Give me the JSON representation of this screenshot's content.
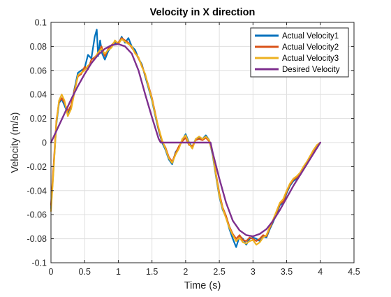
{
  "chart_data": {
    "type": "line",
    "title": "Velocity in X direction",
    "xlabel": "Time (s)",
    "ylabel": "Velocity (m/s)",
    "xlim": [
      0,
      4.5
    ],
    "ylim": [
      -0.1,
      0.1
    ],
    "xticks": [
      0,
      0.5,
      1,
      1.5,
      2,
      2.5,
      3,
      3.5,
      4,
      4.5
    ],
    "xtick_labels": [
      "0",
      "0.5",
      "1",
      "1.5",
      "2",
      "2.5",
      "3",
      "3.5",
      "4",
      "4.5"
    ],
    "yticks": [
      -0.1,
      -0.08,
      -0.06,
      -0.04,
      -0.02,
      0,
      0.02,
      0.04,
      0.06,
      0.08,
      0.1
    ],
    "ytick_labels": [
      "-0.1",
      "-0.08",
      "-0.06",
      "-0.04",
      "-0.02",
      "0",
      "0.02",
      "0.04",
      "0.06",
      "0.08",
      "0.1"
    ],
    "grid": true,
    "legend_position": "top-right",
    "series": [
      {
        "name": "Actual Velocity1",
        "color": "#0072BD",
        "x": [
          0,
          0.04,
          0.08,
          0.12,
          0.16,
          0.2,
          0.25,
          0.3,
          0.35,
          0.4,
          0.45,
          0.5,
          0.55,
          0.6,
          0.65,
          0.68,
          0.7,
          0.73,
          0.76,
          0.8,
          0.85,
          0.9,
          0.95,
          1.0,
          1.05,
          1.1,
          1.15,
          1.2,
          1.25,
          1.3,
          1.35,
          1.4,
          1.45,
          1.5,
          1.55,
          1.6,
          1.65,
          1.7,
          1.75,
          1.8,
          1.85,
          1.9,
          1.95,
          2.0,
          2.05,
          2.1,
          2.15,
          2.2,
          2.25,
          2.3,
          2.35,
          2.4,
          2.45,
          2.5,
          2.55,
          2.6,
          2.65,
          2.7,
          2.75,
          2.8,
          2.85,
          2.9,
          2.95,
          3.0,
          3.05,
          3.1,
          3.15,
          3.2,
          3.25,
          3.3,
          3.35,
          3.4,
          3.45,
          3.5,
          3.55,
          3.6,
          3.65,
          3.7,
          3.75,
          3.8,
          3.85,
          3.9,
          3.95,
          4.0
        ],
        "values": [
          -0.055,
          -0.02,
          0.015,
          0.033,
          0.036,
          0.031,
          0.024,
          0.03,
          0.045,
          0.058,
          0.06,
          0.062,
          0.073,
          0.07,
          0.088,
          0.094,
          0.072,
          0.085,
          0.074,
          0.069,
          0.076,
          0.08,
          0.083,
          0.082,
          0.088,
          0.083,
          0.087,
          0.08,
          0.077,
          0.07,
          0.065,
          0.055,
          0.045,
          0.035,
          0.022,
          0.01,
          0.0,
          -0.006,
          -0.014,
          -0.018,
          -0.008,
          -0.004,
          0.002,
          0.007,
          0.0,
          -0.004,
          0.003,
          0.004,
          0.003,
          0.006,
          0.002,
          -0.01,
          -0.028,
          -0.045,
          -0.056,
          -0.062,
          -0.072,
          -0.08,
          -0.087,
          -0.078,
          -0.08,
          -0.085,
          -0.08,
          -0.079,
          -0.08,
          -0.082,
          -0.078,
          -0.079,
          -0.072,
          -0.066,
          -0.059,
          -0.052,
          -0.05,
          -0.042,
          -0.036,
          -0.032,
          -0.03,
          -0.027,
          -0.022,
          -0.018,
          -0.013,
          -0.008,
          -0.004,
          0.0
        ]
      },
      {
        "name": "Actual Velocity2",
        "color": "#D95319",
        "x": [
          0,
          0.04,
          0.08,
          0.12,
          0.16,
          0.2,
          0.25,
          0.3,
          0.35,
          0.4,
          0.45,
          0.5,
          0.55,
          0.6,
          0.65,
          0.7,
          0.75,
          0.8,
          0.85,
          0.9,
          0.95,
          1.0,
          1.05,
          1.1,
          1.15,
          1.2,
          1.25,
          1.3,
          1.35,
          1.4,
          1.45,
          1.5,
          1.55,
          1.6,
          1.65,
          1.7,
          1.75,
          1.8,
          1.85,
          1.9,
          1.95,
          2.0,
          2.05,
          2.1,
          2.15,
          2.2,
          2.25,
          2.3,
          2.35,
          2.4,
          2.45,
          2.5,
          2.55,
          2.6,
          2.65,
          2.7,
          2.75,
          2.8,
          2.85,
          2.9,
          2.95,
          3.0,
          3.05,
          3.1,
          3.15,
          3.2,
          3.25,
          3.3,
          3.35,
          3.4,
          3.45,
          3.5,
          3.55,
          3.6,
          3.65,
          3.7,
          3.75,
          3.8,
          3.85,
          3.9,
          3.95,
          4.0
        ],
        "values": [
          -0.052,
          -0.018,
          0.018,
          0.034,
          0.037,
          0.033,
          0.026,
          0.031,
          0.044,
          0.055,
          0.057,
          0.063,
          0.061,
          0.069,
          0.071,
          0.074,
          0.08,
          0.072,
          0.078,
          0.081,
          0.084,
          0.083,
          0.087,
          0.085,
          0.083,
          0.079,
          0.075,
          0.07,
          0.064,
          0.056,
          0.047,
          0.037,
          0.024,
          0.011,
          0.001,
          -0.004,
          -0.012,
          -0.016,
          -0.009,
          -0.003,
          0.001,
          0.004,
          -0.002,
          -0.003,
          0.002,
          0.003,
          0.002,
          0.004,
          0.001,
          -0.008,
          -0.026,
          -0.042,
          -0.054,
          -0.061,
          -0.07,
          -0.076,
          -0.08,
          -0.077,
          -0.081,
          -0.082,
          -0.079,
          -0.08,
          -0.082,
          -0.08,
          -0.077,
          -0.078,
          -0.071,
          -0.065,
          -0.058,
          -0.051,
          -0.049,
          -0.041,
          -0.035,
          -0.031,
          -0.029,
          -0.026,
          -0.021,
          -0.017,
          -0.012,
          -0.007,
          -0.003,
          0.0
        ]
      },
      {
        "name": "Actual Velocity3",
        "color": "#EDB120",
        "x": [
          0,
          0.04,
          0.08,
          0.12,
          0.16,
          0.2,
          0.25,
          0.3,
          0.35,
          0.4,
          0.45,
          0.5,
          0.55,
          0.6,
          0.65,
          0.7,
          0.75,
          0.8,
          0.85,
          0.9,
          0.95,
          1.0,
          1.05,
          1.1,
          1.15,
          1.2,
          1.25,
          1.3,
          1.35,
          1.4,
          1.45,
          1.5,
          1.55,
          1.6,
          1.65,
          1.7,
          1.75,
          1.8,
          1.85,
          1.9,
          1.95,
          2.0,
          2.05,
          2.1,
          2.15,
          2.2,
          2.25,
          2.3,
          2.35,
          2.4,
          2.45,
          2.5,
          2.55,
          2.6,
          2.65,
          2.7,
          2.75,
          2.8,
          2.85,
          2.9,
          2.95,
          3.0,
          3.05,
          3.1,
          3.15,
          3.2,
          3.25,
          3.3,
          3.35,
          3.4,
          3.45,
          3.5,
          3.55,
          3.6,
          3.65,
          3.7,
          3.75,
          3.8,
          3.85,
          3.9,
          3.95,
          4.0
        ],
        "values": [
          -0.057,
          -0.022,
          0.016,
          0.035,
          0.04,
          0.035,
          0.022,
          0.028,
          0.042,
          0.056,
          0.058,
          0.06,
          0.064,
          0.066,
          0.07,
          0.075,
          0.078,
          0.074,
          0.077,
          0.079,
          0.085,
          0.082,
          0.086,
          0.084,
          0.082,
          0.08,
          0.074,
          0.071,
          0.063,
          0.057,
          0.046,
          0.036,
          0.023,
          0.012,
          0.002,
          -0.005,
          -0.013,
          -0.017,
          -0.01,
          -0.005,
          0.003,
          0.006,
          -0.001,
          -0.005,
          0.003,
          0.005,
          0.003,
          0.005,
          0.002,
          -0.009,
          -0.027,
          -0.044,
          -0.055,
          -0.063,
          -0.071,
          -0.077,
          -0.082,
          -0.079,
          -0.083,
          -0.084,
          -0.082,
          -0.081,
          -0.085,
          -0.083,
          -0.079,
          -0.077,
          -0.07,
          -0.064,
          -0.057,
          -0.05,
          -0.047,
          -0.04,
          -0.034,
          -0.03,
          -0.028,
          -0.025,
          -0.02,
          -0.016,
          -0.011,
          -0.006,
          -0.002,
          0.0
        ]
      },
      {
        "name": "Desired Velocity",
        "color": "#7E2F8E",
        "x": [
          0,
          0.1,
          0.2,
          0.3,
          0.4,
          0.5,
          0.6,
          0.7,
          0.8,
          0.9,
          1.0,
          1.1,
          1.2,
          1.3,
          1.4,
          1.5,
          1.6,
          1.63,
          1.7,
          1.8,
          1.9,
          2.0,
          2.1,
          2.2,
          2.3,
          2.37,
          2.4,
          2.5,
          2.6,
          2.7,
          2.8,
          2.9,
          3.0,
          3.1,
          3.2,
          3.3,
          3.4,
          3.5,
          3.6,
          3.7,
          3.8,
          3.9,
          4.0
        ],
        "values": [
          0.0,
          0.012,
          0.024,
          0.036,
          0.047,
          0.057,
          0.066,
          0.073,
          0.078,
          0.081,
          0.082,
          0.08,
          0.074,
          0.06,
          0.04,
          0.021,
          0.003,
          0.0,
          0.0,
          0.0,
          0.0,
          0.0,
          0.0,
          0.0,
          0.0,
          0.0,
          -0.008,
          -0.03,
          -0.05,
          -0.065,
          -0.073,
          -0.077,
          -0.078,
          -0.076,
          -0.072,
          -0.065,
          -0.056,
          -0.046,
          -0.036,
          -0.027,
          -0.018,
          -0.009,
          0.0
        ]
      }
    ]
  }
}
